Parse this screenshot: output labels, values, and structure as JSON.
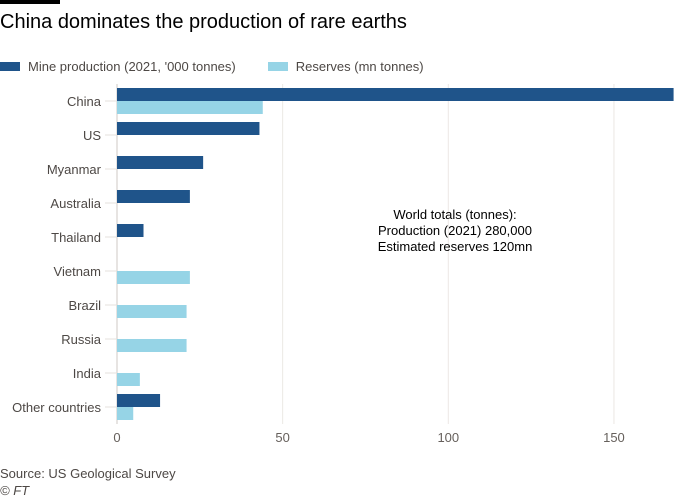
{
  "chart_data": {
    "type": "bar",
    "orientation": "horizontal",
    "title": "China dominates the production of rare earths",
    "categories": [
      "China",
      "US",
      "Myanmar",
      "Australia",
      "Thailand",
      "Vietnam",
      "Brazil",
      "Russia",
      "India",
      "Other countries"
    ],
    "series": [
      {
        "name": "Mine production (2021, '000 tonnes)",
        "color": "#1f548a",
        "values": [
          168,
          43,
          26,
          22,
          8,
          null,
          null,
          null,
          null,
          13
        ]
      },
      {
        "name": "Reserves (mn tonnes)",
        "color": "#96d4e6",
        "values": [
          44,
          null,
          null,
          null,
          null,
          22,
          21,
          21,
          6.9,
          4.9
        ]
      }
    ],
    "xlim": [
      0,
      174
    ],
    "xticks": [
      0,
      50,
      100,
      150
    ],
    "grid": true,
    "legend_position": "top-left",
    "annotation": [
      "World totals (tonnes):",
      "Production (2021) 280,000",
      "Estimated reserves 120mn"
    ]
  },
  "footer": {
    "source": "Source: US Geological Survey",
    "credit": "© FT"
  }
}
